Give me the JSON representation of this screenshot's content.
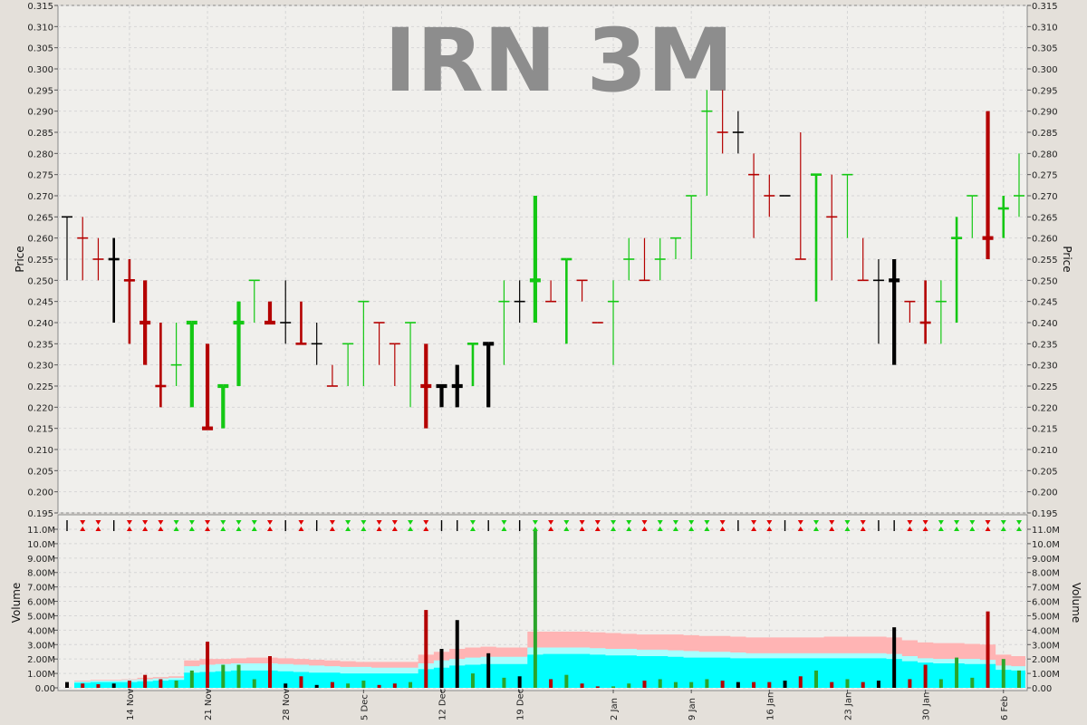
{
  "chart_data": [
    {
      "type": "ohlc",
      "title": "IRN 3M",
      "ylabel": "Price",
      "ylim": [
        0.195,
        0.315
      ],
      "yticks": [
        "0.195",
        "0.200",
        "0.205",
        "0.210",
        "0.215",
        "0.220",
        "0.225",
        "0.230",
        "0.235",
        "0.240",
        "0.245",
        "0.250",
        "0.255",
        "0.260",
        "0.265",
        "0.270",
        "0.275",
        "0.280",
        "0.285",
        "0.290",
        "0.295",
        "0.300",
        "0.305",
        "0.310",
        "0.315"
      ],
      "grid": true,
      "colors": {
        "up": "#14c814",
        "down": "#b40000",
        "unchanged": "#000000"
      },
      "bars": [
        {
          "d": "2014-11-10",
          "o": 0.265,
          "h": 0.265,
          "l": 0.25,
          "c": 0.265,
          "w": "thin",
          "dir": "flat"
        },
        {
          "d": "2014-11-11",
          "o": 0.26,
          "h": 0.265,
          "l": 0.25,
          "c": 0.26,
          "w": "thin",
          "dir": "down"
        },
        {
          "d": "2014-11-12",
          "o": 0.255,
          "h": 0.26,
          "l": 0.25,
          "c": 0.255,
          "w": "thin",
          "dir": "down"
        },
        {
          "d": "2014-11-13",
          "o": 0.255,
          "h": 0.26,
          "l": 0.24,
          "c": 0.255,
          "w": "med",
          "dir": "flat"
        },
        {
          "d": "2014-11-14",
          "o": 0.25,
          "h": 0.255,
          "l": 0.235,
          "c": 0.25,
          "w": "med",
          "dir": "down"
        },
        {
          "d": "2014-11-17",
          "o": 0.24,
          "h": 0.25,
          "l": 0.23,
          "c": 0.24,
          "w": "thick",
          "dir": "down"
        },
        {
          "d": "2014-11-18",
          "o": 0.225,
          "h": 0.24,
          "l": 0.22,
          "c": 0.225,
          "w": "med",
          "dir": "down"
        },
        {
          "d": "2014-11-19",
          "o": 0.23,
          "h": 0.24,
          "l": 0.225,
          "c": 0.23,
          "w": "thin",
          "dir": "up"
        },
        {
          "d": "2014-11-20",
          "o": 0.24,
          "h": 0.24,
          "l": 0.22,
          "c": 0.24,
          "w": "thick",
          "dir": "up"
        },
        {
          "d": "2014-11-21",
          "o": 0.215,
          "h": 0.235,
          "l": 0.215,
          "c": 0.215,
          "w": "thick",
          "dir": "down"
        },
        {
          "d": "2014-11-24",
          "o": 0.225,
          "h": 0.225,
          "l": 0.215,
          "c": 0.225,
          "w": "thick",
          "dir": "up"
        },
        {
          "d": "2014-11-25",
          "o": 0.24,
          "h": 0.245,
          "l": 0.225,
          "c": 0.24,
          "w": "thick",
          "dir": "up"
        },
        {
          "d": "2014-11-26",
          "o": 0.25,
          "h": 0.25,
          "l": 0.24,
          "c": 0.25,
          "w": "thin",
          "dir": "up"
        },
        {
          "d": "2014-11-27",
          "o": 0.24,
          "h": 0.245,
          "l": 0.24,
          "c": 0.24,
          "w": "thick",
          "dir": "down"
        },
        {
          "d": "2014-11-28",
          "o": 0.24,
          "h": 0.25,
          "l": 0.235,
          "c": 0.24,
          "w": "thin",
          "dir": "flat"
        },
        {
          "d": "2014-12-01",
          "o": 0.235,
          "h": 0.245,
          "l": 0.235,
          "c": 0.235,
          "w": "med",
          "dir": "down"
        },
        {
          "d": "2014-12-02",
          "o": 0.235,
          "h": 0.24,
          "l": 0.23,
          "c": 0.235,
          "w": "thin",
          "dir": "flat"
        },
        {
          "d": "2014-12-03",
          "o": 0.225,
          "h": 0.23,
          "l": 0.225,
          "c": 0.225,
          "w": "thin",
          "dir": "down"
        },
        {
          "d": "2014-12-04",
          "o": 0.235,
          "h": 0.235,
          "l": 0.225,
          "c": 0.235,
          "w": "thin",
          "dir": "up"
        },
        {
          "d": "2014-12-05",
          "o": 0.245,
          "h": 0.245,
          "l": 0.225,
          "c": 0.245,
          "w": "thin",
          "dir": "up"
        },
        {
          "d": "2014-12-08",
          "o": 0.24,
          "h": 0.24,
          "l": 0.23,
          "c": 0.24,
          "w": "thin",
          "dir": "down"
        },
        {
          "d": "2014-12-09",
          "o": 0.235,
          "h": 0.235,
          "l": 0.225,
          "c": 0.235,
          "w": "thin",
          "dir": "down"
        },
        {
          "d": "2014-12-10",
          "o": 0.24,
          "h": 0.24,
          "l": 0.22,
          "c": 0.24,
          "w": "thin",
          "dir": "up"
        },
        {
          "d": "2014-12-11",
          "o": 0.225,
          "h": 0.235,
          "l": 0.215,
          "c": 0.225,
          "w": "thick",
          "dir": "down"
        },
        {
          "d": "2014-12-12",
          "o": 0.225,
          "h": 0.225,
          "l": 0.22,
          "c": 0.225,
          "w": "thick",
          "dir": "flat"
        },
        {
          "d": "2014-12-15",
          "o": 0.225,
          "h": 0.23,
          "l": 0.22,
          "c": 0.225,
          "w": "thick",
          "dir": "flat"
        },
        {
          "d": "2014-12-16",
          "o": 0.235,
          "h": 0.235,
          "l": 0.225,
          "c": 0.235,
          "w": "med",
          "dir": "up"
        },
        {
          "d": "2014-12-17",
          "o": 0.235,
          "h": 0.235,
          "l": 0.22,
          "c": 0.235,
          "w": "thick",
          "dir": "flat"
        },
        {
          "d": "2014-12-18",
          "o": 0.245,
          "h": 0.25,
          "l": 0.23,
          "c": 0.245,
          "w": "thin",
          "dir": "up"
        },
        {
          "d": "2014-12-19",
          "o": 0.245,
          "h": 0.25,
          "l": 0.24,
          "c": 0.245,
          "w": "thin",
          "dir": "flat"
        },
        {
          "d": "2014-12-22",
          "o": 0.25,
          "h": 0.27,
          "l": 0.24,
          "c": 0.25,
          "w": "thick",
          "dir": "up"
        },
        {
          "d": "2014-12-23",
          "o": 0.245,
          "h": 0.25,
          "l": 0.245,
          "c": 0.245,
          "w": "thin",
          "dir": "down"
        },
        {
          "d": "2014-12-24",
          "o": 0.255,
          "h": 0.255,
          "l": 0.235,
          "c": 0.255,
          "w": "med",
          "dir": "up"
        },
        {
          "d": "2014-12-29",
          "o": 0.25,
          "h": 0.25,
          "l": 0.245,
          "c": 0.25,
          "w": "thin",
          "dir": "down"
        },
        {
          "d": "2014-12-31",
          "o": 0.24,
          "h": 0.24,
          "l": 0.24,
          "c": 0.24,
          "w": "thin",
          "dir": "down"
        },
        {
          "d": "2015-01-02",
          "o": 0.245,
          "h": 0.25,
          "l": 0.23,
          "c": 0.245,
          "w": "thin",
          "dir": "up"
        },
        {
          "d": "2015-01-05",
          "o": 0.255,
          "h": 0.26,
          "l": 0.25,
          "c": 0.255,
          "w": "thin",
          "dir": "up"
        },
        {
          "d": "2015-01-06",
          "o": 0.25,
          "h": 0.26,
          "l": 0.25,
          "c": 0.25,
          "w": "thin",
          "dir": "down"
        },
        {
          "d": "2015-01-07",
          "o": 0.255,
          "h": 0.26,
          "l": 0.25,
          "c": 0.255,
          "w": "thin",
          "dir": "up"
        },
        {
          "d": "2015-01-08",
          "o": 0.26,
          "h": 0.26,
          "l": 0.255,
          "c": 0.26,
          "w": "thin",
          "dir": "up"
        },
        {
          "d": "2015-01-09",
          "o": 0.27,
          "h": 0.27,
          "l": 0.255,
          "c": 0.27,
          "w": "thin",
          "dir": "up"
        },
        {
          "d": "2015-01-12",
          "o": 0.29,
          "h": 0.295,
          "l": 0.27,
          "c": 0.29,
          "w": "thin",
          "dir": "up"
        },
        {
          "d": "2015-01-13",
          "o": 0.285,
          "h": 0.295,
          "l": 0.28,
          "c": 0.285,
          "w": "thin",
          "dir": "down"
        },
        {
          "d": "2015-01-14",
          "o": 0.285,
          "h": 0.29,
          "l": 0.28,
          "c": 0.285,
          "w": "thin",
          "dir": "flat"
        },
        {
          "d": "2015-01-15",
          "o": 0.275,
          "h": 0.28,
          "l": 0.26,
          "c": 0.275,
          "w": "thin",
          "dir": "down"
        },
        {
          "d": "2015-01-16",
          "o": 0.27,
          "h": 0.275,
          "l": 0.265,
          "c": 0.27,
          "w": "thin",
          "dir": "down"
        },
        {
          "d": "2015-01-19",
          "o": 0.27,
          "h": 0.27,
          "l": 0.27,
          "c": 0.27,
          "w": "thin",
          "dir": "flat"
        },
        {
          "d": "2015-01-20",
          "o": 0.255,
          "h": 0.285,
          "l": 0.255,
          "c": 0.255,
          "w": "thin",
          "dir": "down"
        },
        {
          "d": "2015-01-21",
          "o": 0.275,
          "h": 0.275,
          "l": 0.245,
          "c": 0.275,
          "w": "med",
          "dir": "up"
        },
        {
          "d": "2015-01-22",
          "o": 0.265,
          "h": 0.275,
          "l": 0.25,
          "c": 0.265,
          "w": "thin",
          "dir": "down"
        },
        {
          "d": "2015-01-23",
          "o": 0.275,
          "h": 0.275,
          "l": 0.26,
          "c": 0.275,
          "w": "thin",
          "dir": "up"
        },
        {
          "d": "2015-01-26",
          "o": 0.25,
          "h": 0.26,
          "l": 0.25,
          "c": 0.25,
          "w": "thin",
          "dir": "down"
        },
        {
          "d": "2015-01-27",
          "o": 0.25,
          "h": 0.255,
          "l": 0.235,
          "c": 0.25,
          "w": "thin",
          "dir": "flat"
        },
        {
          "d": "2015-01-28",
          "o": 0.25,
          "h": 0.255,
          "l": 0.23,
          "c": 0.25,
          "w": "thick",
          "dir": "flat"
        },
        {
          "d": "2015-01-29",
          "o": 0.245,
          "h": 0.245,
          "l": 0.24,
          "c": 0.245,
          "w": "thin",
          "dir": "down"
        },
        {
          "d": "2015-01-30",
          "o": 0.24,
          "h": 0.25,
          "l": 0.235,
          "c": 0.24,
          "w": "med",
          "dir": "down"
        },
        {
          "d": "2015-02-02",
          "o": 0.245,
          "h": 0.25,
          "l": 0.235,
          "c": 0.245,
          "w": "thin",
          "dir": "up"
        },
        {
          "d": "2015-02-03",
          "o": 0.26,
          "h": 0.265,
          "l": 0.24,
          "c": 0.26,
          "w": "med",
          "dir": "up"
        },
        {
          "d": "2015-02-04",
          "o": 0.27,
          "h": 0.27,
          "l": 0.26,
          "c": 0.27,
          "w": "thin",
          "dir": "up"
        },
        {
          "d": "2015-02-05",
          "o": 0.26,
          "h": 0.29,
          "l": 0.255,
          "c": 0.26,
          "w": "thick",
          "dir": "down"
        },
        {
          "d": "2015-02-06",
          "o": 0.267,
          "h": 0.27,
          "l": 0.26,
          "c": 0.267,
          "w": "med",
          "dir": "up"
        },
        {
          "d": "2015-02-09",
          "o": 0.27,
          "h": 0.28,
          "l": 0.265,
          "c": 0.27,
          "w": "thin",
          "dir": "up"
        }
      ]
    },
    {
      "type": "bar",
      "ylabel": "Volume",
      "ylim": [
        0,
        11200000
      ],
      "yticks": [
        "0.00",
        "1.00M",
        "2.00M",
        "3.00M",
        "4.00M",
        "5.00M",
        "6.00M",
        "7.00M",
        "8.00M",
        "9.00M",
        "10.0M",
        "11.0M"
      ],
      "xticks": [
        {
          "label": "14 Nov",
          "d": "2014-11-14"
        },
        {
          "label": "21 Nov",
          "d": "2014-11-21"
        },
        {
          "label": "28 Nov",
          "d": "2014-11-28"
        },
        {
          "label": "5 Dec",
          "d": "2014-12-05"
        },
        {
          "label": "12 Dec",
          "d": "2014-12-12"
        },
        {
          "label": "19 Dec",
          "d": "2014-12-19"
        },
        {
          "label": "2 Jan",
          "d": "2015-01-02"
        },
        {
          "label": "9 Jan",
          "d": "2015-01-09"
        },
        {
          "label": "16 Jan",
          "d": "2015-01-16"
        },
        {
          "label": "23 Jan",
          "d": "2015-01-23"
        },
        {
          "label": "30 Jan",
          "d": "2015-01-30"
        },
        {
          "label": "6 Feb",
          "d": "2015-02-06"
        }
      ],
      "grid": true,
      "bands": {
        "colors": {
          "outer": "#ffb4b4",
          "mid": "#a8ffff",
          "inner": "#00ffff"
        }
      },
      "series": [
        {
          "values": [
            400000,
            300000,
            250000,
            300000,
            500000,
            900000,
            600000,
            500000,
            1200000,
            3200000,
            1600000,
            1600000,
            600000,
            2200000,
            300000,
            800000,
            200000,
            400000,
            300000,
            500000,
            200000,
            300000,
            400000,
            5400000,
            2700000,
            4700000,
            1000000,
            2400000,
            700000,
            800000,
            11000000,
            600000,
            900000,
            300000,
            100000,
            100000,
            300000,
            500000,
            600000,
            400000,
            400000,
            600000,
            500000,
            400000,
            400000,
            400000,
            500000,
            800000,
            1200000,
            400000,
            600000,
            400000,
            500000,
            4200000,
            600000,
            1600000,
            600000,
            2100000,
            700000,
            5300000,
            2000000,
            1200000
          ]
        }
      ],
      "bands_series": [
        {
          "values": [
            500000,
            500000,
            550000,
            550000,
            600000,
            700000,
            750000,
            800000,
            1900000,
            2000000,
            2000000,
            2050000,
            2100000,
            2100000,
            2050000,
            2000000,
            1950000,
            1900000,
            1850000,
            1800000,
            1800000,
            1800000,
            1800000,
            2300000,
            2500000,
            2700000,
            2800000,
            2850000,
            2800000,
            2800000,
            3900000,
            3900000,
            3900000,
            3900000,
            3850000,
            3800000,
            3750000,
            3700000,
            3700000,
            3700000,
            3650000,
            3600000,
            3600000,
            3550000,
            3500000,
            3500000,
            3500000,
            3500000,
            3500000,
            3550000,
            3550000,
            3550000,
            3550000,
            3500000,
            3300000,
            3150000,
            3100000,
            3100000,
            3050000,
            3000000,
            2300000,
            2200000
          ]
        },
        {
          "values": [
            450000,
            450000,
            500000,
            500000,
            550000,
            600000,
            650000,
            700000,
            1500000,
            1600000,
            1650000,
            1700000,
            1700000,
            1700000,
            1650000,
            1600000,
            1550000,
            1500000,
            1450000,
            1450000,
            1400000,
            1400000,
            1400000,
            1700000,
            1900000,
            2000000,
            2100000,
            2150000,
            2150000,
            2150000,
            2800000,
            2800000,
            2800000,
            2800000,
            2750000,
            2700000,
            2700000,
            2650000,
            2650000,
            2600000,
            2550000,
            2500000,
            2500000,
            2450000,
            2400000,
            2400000,
            2400000,
            2400000,
            2400000,
            2400000,
            2400000,
            2400000,
            2400000,
            2350000,
            2200000,
            2050000,
            2000000,
            2000000,
            2000000,
            1950000,
            1550000,
            1500000
          ]
        },
        {
          "values": [
            350000,
            350000,
            400000,
            400000,
            400000,
            450000,
            500000,
            550000,
            1050000,
            1100000,
            1150000,
            1200000,
            1200000,
            1200000,
            1150000,
            1100000,
            1050000,
            1050000,
            1000000,
            1000000,
            1000000,
            1000000,
            1000000,
            1300000,
            1400000,
            1550000,
            1600000,
            1650000,
            1650000,
            1650000,
            2300000,
            2350000,
            2350000,
            2350000,
            2300000,
            2250000,
            2250000,
            2200000,
            2200000,
            2150000,
            2100000,
            2100000,
            2100000,
            2050000,
            2050000,
            2050000,
            2050000,
            2050000,
            2050000,
            2050000,
            2050000,
            2050000,
            2050000,
            2000000,
            1850000,
            1750000,
            1700000,
            1700000,
            1650000,
            1650000,
            1250000,
            1200000
          ]
        }
      ]
    }
  ]
}
